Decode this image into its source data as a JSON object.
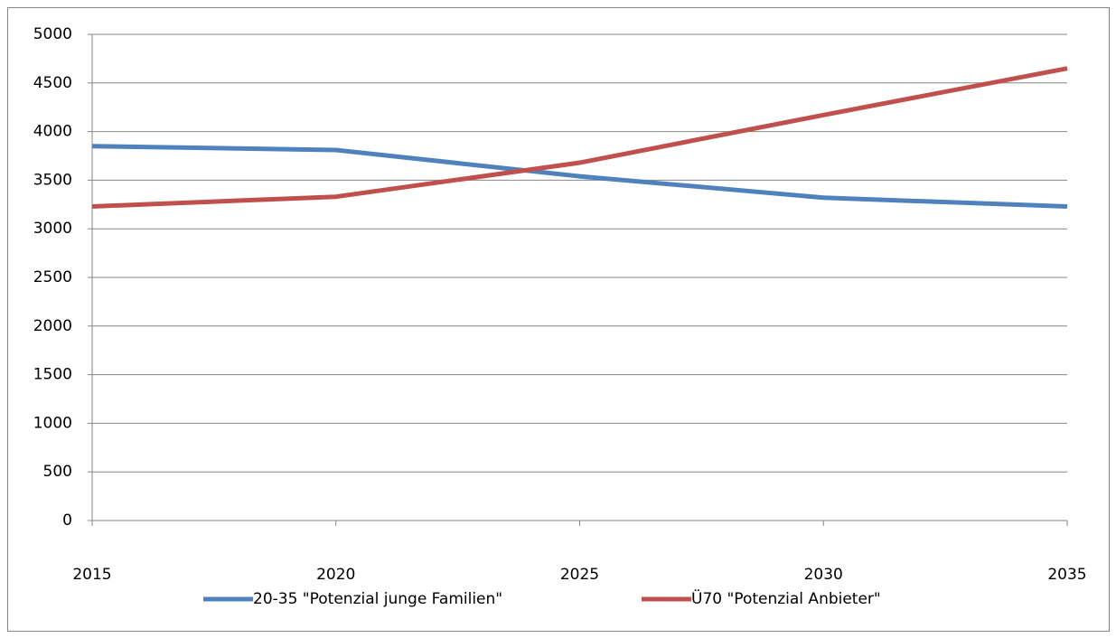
{
  "chart_data": {
    "type": "line",
    "x": [
      2015,
      2020,
      2025,
      2030,
      2035
    ],
    "series": [
      {
        "name": "20-35 \"Potenzial junge Familien\"",
        "color": "#4f81bd",
        "values": [
          3850,
          3810,
          3540,
          3320,
          3230
        ]
      },
      {
        "name": "Ü70 \"Potenzial Anbieter\"",
        "color": "#c0504d",
        "values": [
          3230,
          3330,
          3680,
          4170,
          4650
        ]
      }
    ],
    "xlim": [
      2015,
      2035
    ],
    "xticks": [
      2015,
      2020,
      2025,
      2030,
      2035
    ],
    "ylim": [
      0,
      5000
    ],
    "yticks": [
      0,
      500,
      1000,
      1500,
      2000,
      2500,
      3000,
      3500,
      4000,
      4500,
      5000
    ],
    "grid": true,
    "legend": "bottom"
  }
}
